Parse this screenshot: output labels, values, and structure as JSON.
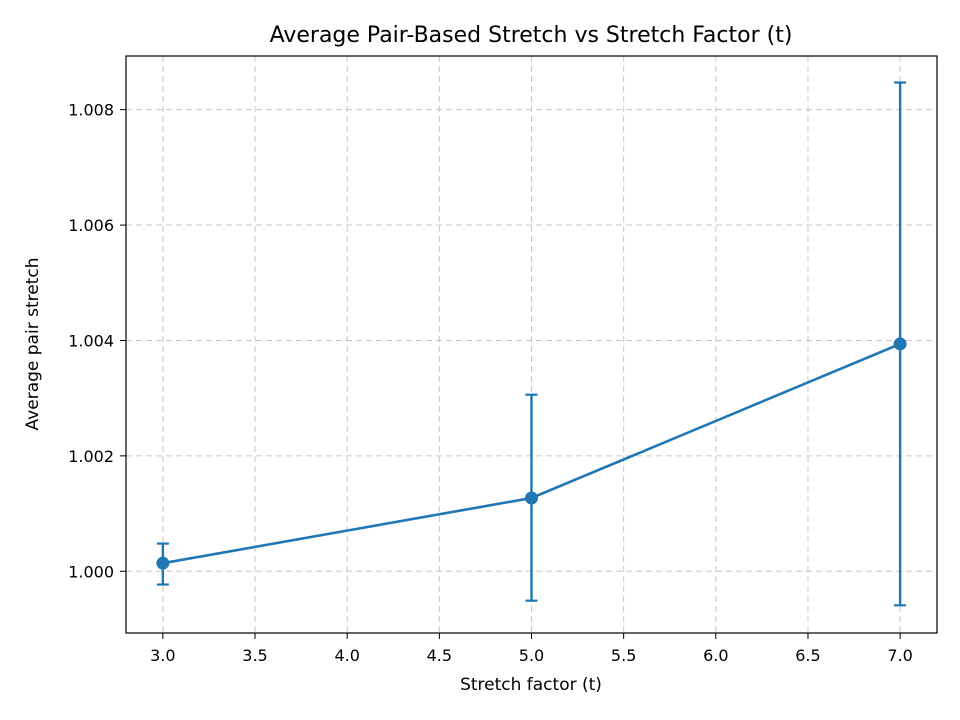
{
  "chart_data": {
    "type": "line",
    "title": "Average Pair-Based Stretch vs Stretch Factor (t)",
    "xlabel": "Stretch factor (t)",
    "ylabel": "Average pair stretch",
    "x": [
      3.0,
      5.0,
      7.0
    ],
    "series": [
      {
        "values": [
          1.00014,
          1.00127,
          1.00394
        ],
        "error_low": [
          0.99977,
          0.99949,
          0.99941
        ],
        "error_high": [
          1.00048,
          1.00306,
          1.00847
        ]
      }
    ],
    "xlim": [
      2.8,
      7.2
    ],
    "ylim": [
      0.99893,
      1.00893
    ],
    "x_ticks": [
      3.0,
      3.5,
      4.0,
      4.5,
      5.0,
      5.5,
      6.0,
      6.5,
      7.0
    ],
    "x_tick_labels": [
      "3.0",
      "3.5",
      "4.0",
      "4.5",
      "5.0",
      "5.5",
      "6.0",
      "6.5",
      "7.0"
    ],
    "y_ticks": [
      1.0,
      1.002,
      1.004,
      1.006,
      1.008
    ],
    "y_tick_labels": [
      "1.000",
      "1.002",
      "1.004",
      "1.006",
      "1.008"
    ],
    "grid": true,
    "line_color": "#1f77b4",
    "marker": "circle"
  }
}
